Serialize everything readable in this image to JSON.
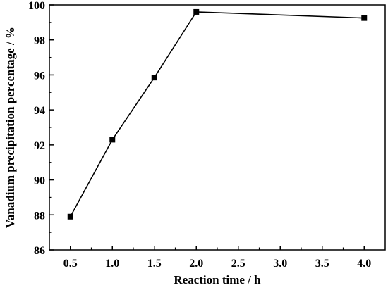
{
  "chart_data": {
    "type": "line",
    "title": "",
    "xlabel": "Reaction time / h",
    "ylabel": "Vanadium precipitation percentage / %",
    "xlim": [
      0.25,
      4.25
    ],
    "ylim": [
      86,
      100
    ],
    "xticks": [
      0.5,
      1.0,
      1.5,
      2.0,
      2.5,
      3.0,
      3.5,
      4.0
    ],
    "xtick_labels": [
      "0.5",
      "1.0",
      "1.5",
      "2.0",
      "2.5",
      "3.0",
      "3.5",
      "4.0"
    ],
    "yticks": [
      86,
      88,
      90,
      92,
      94,
      96,
      98,
      100
    ],
    "ytick_labels": [
      "86",
      "88",
      "90",
      "92",
      "94",
      "96",
      "98",
      "100"
    ],
    "grid": false,
    "legend": "none",
    "line_color": "#000000",
    "marker": "square",
    "series": [
      {
        "x": [
          0.5,
          1.0,
          1.5,
          2.0,
          4.0
        ],
        "y": [
          87.9,
          92.3,
          95.85,
          99.6,
          99.25
        ]
      }
    ]
  }
}
